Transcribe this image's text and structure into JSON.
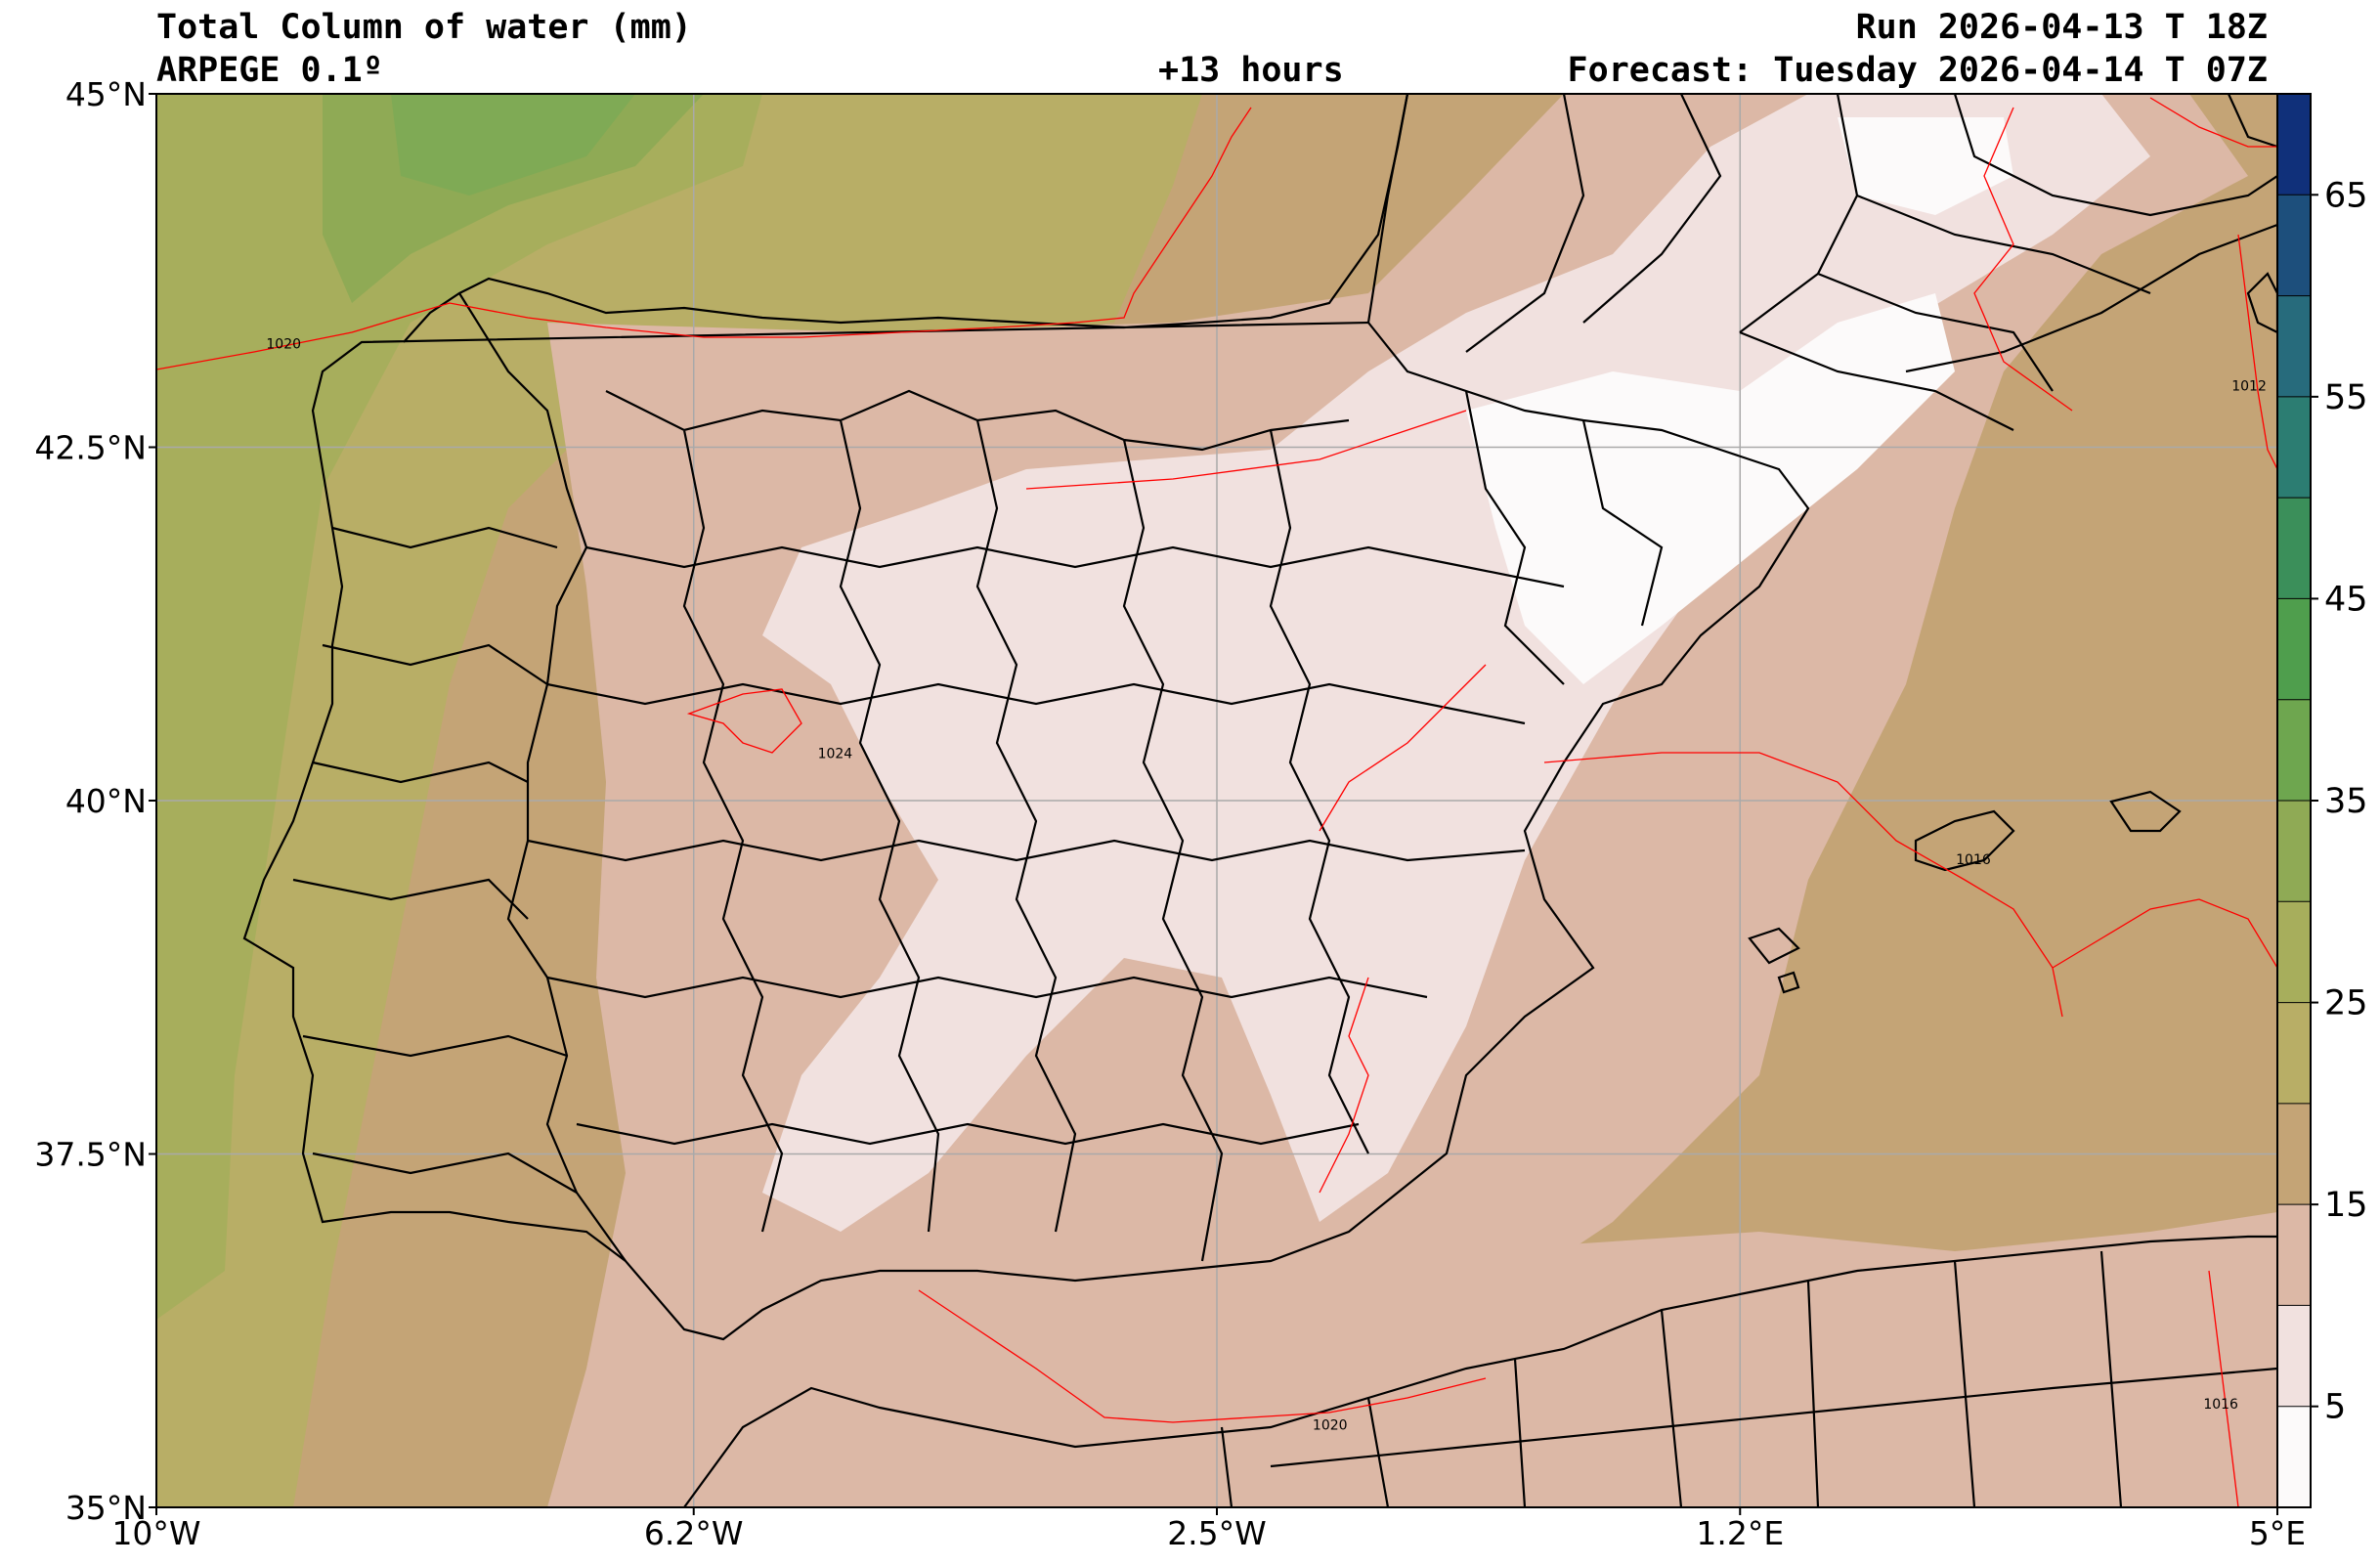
{
  "header": {
    "title_left_1": "Total Column of water (mm)",
    "title_left_2": "ARPEGE 0.1º",
    "title_center": "+13 hours",
    "title_right_1": "Run 2026-04-13 T 18Z",
    "title_right_2": "Forecast: Tuesday 2026-04-14 T 07Z"
  },
  "axes": {
    "lon_range": [
      -10,
      5
    ],
    "lat_range": [
      35,
      45
    ],
    "lon_ticks": [
      {
        "value": -10,
        "label": "10°W"
      },
      {
        "value": -6.2,
        "label": "6.2°W"
      },
      {
        "value": -2.5,
        "label": "2.5°W"
      },
      {
        "value": 1.2,
        "label": "1.2°E"
      },
      {
        "value": 5,
        "label": "5°E"
      }
    ],
    "lat_ticks": [
      {
        "value": 35,
        "label": "35°N"
      },
      {
        "value": 37.5,
        "label": "37.5°N"
      },
      {
        "value": 40,
        "label": "40°N"
      },
      {
        "value": 42.5,
        "label": "42.5°N"
      },
      {
        "value": 45,
        "label": "45°N"
      }
    ],
    "grid": true
  },
  "colorbar": {
    "range": [
      0,
      70
    ],
    "step": 5,
    "colors": [
      "#fcfafa",
      "#f1e1df",
      "#dcb8a6",
      "#c4a476",
      "#b8ae66",
      "#a7ae5c",
      "#8faa55",
      "#6ea64f",
      "#4f9e4d",
      "#3b8f5a",
      "#2c7d72",
      "#276b7c",
      "#1d4f7c",
      "#10307a",
      "#000000"
    ],
    "labels": [
      {
        "value": 5,
        "label": "5"
      },
      {
        "value": 15,
        "label": "15"
      },
      {
        "value": 25,
        "label": "25"
      },
      {
        "value": 35,
        "label": "35"
      },
      {
        "value": 45,
        "label": "45"
      },
      {
        "value": 55,
        "label": "55"
      },
      {
        "value": 65,
        "label": "65"
      }
    ]
  },
  "isobars": {
    "color": "#ff0000",
    "labels": [
      {
        "text": "1020",
        "lon": -9.1,
        "lat": 43.2
      },
      {
        "text": "1024",
        "lon": -5.2,
        "lat": 40.3
      },
      {
        "text": "1016",
        "lon": 2.85,
        "lat": 39.55
      },
      {
        "text": "1012",
        "lon": 4.8,
        "lat": 42.9
      },
      {
        "text": "1020",
        "lon": -1.7,
        "lat": 35.55
      },
      {
        "text": "1016",
        "lon": 4.6,
        "lat": 35.7
      }
    ]
  }
}
